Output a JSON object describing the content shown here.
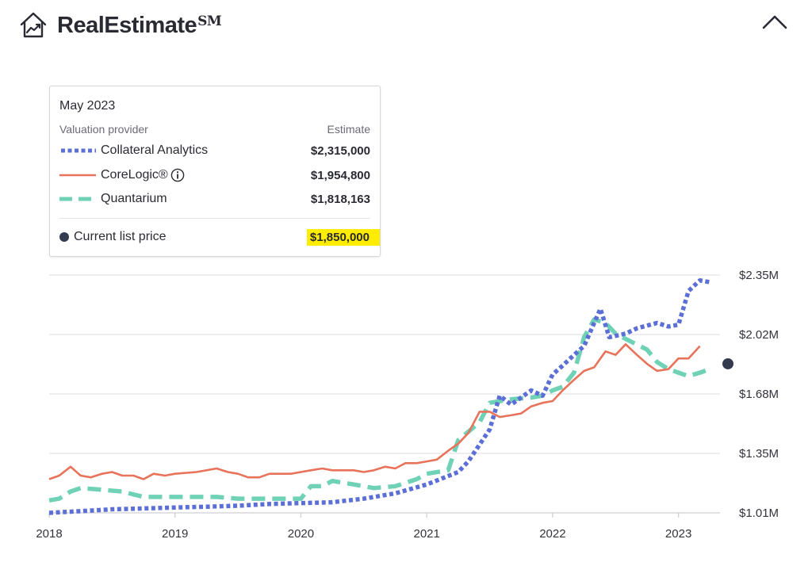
{
  "header": {
    "title": "RealEstimate",
    "title_mark": "SM",
    "logo_icon": "house-trend-icon",
    "collapse_icon": "chevron-up-icon"
  },
  "legend": {
    "date": "May 2023",
    "provider_header": "Valuation provider",
    "estimate_header": "Estimate",
    "providers": [
      {
        "name": "Collateral Analytics",
        "estimate": "$2,315,000",
        "color": "#5c6fd6",
        "style": "dotted"
      },
      {
        "name": "CoreLogic®",
        "estimate": "$1,954,800",
        "color": "#e8735a",
        "style": "solid"
      },
      {
        "name": "Quantarium",
        "estimate": "$1,818,163",
        "color": "#6fd1b5",
        "style": "dashed"
      }
    ],
    "list_price_label": "Current list price",
    "list_price_value": "$1,850,000",
    "highlight_color": "#ffed00",
    "list_price_color": "#343b4f"
  },
  "chart_data": {
    "type": "line",
    "x_labels": [
      "2018",
      "2019",
      "2020",
      "2021",
      "2022",
      "2023"
    ],
    "y_labels": [
      "$2.35M",
      "$2.02M",
      "$1.68M",
      "$1.35M",
      "$1.01M"
    ],
    "ylim": [
      1.01,
      2.35
    ],
    "x_range": [
      2018.0,
      2023.33
    ],
    "grid": true,
    "series": [
      {
        "name": "Collateral Analytics",
        "color": "#5c6fd6",
        "style": "dotted",
        "points": [
          [
            2018.0,
            1.01
          ],
          [
            2018.25,
            1.02
          ],
          [
            2018.5,
            1.03
          ],
          [
            2018.75,
            1.035
          ],
          [
            2019.0,
            1.04
          ],
          [
            2019.25,
            1.045
          ],
          [
            2019.5,
            1.05
          ],
          [
            2019.75,
            1.06
          ],
          [
            2020.0,
            1.065
          ],
          [
            2020.25,
            1.07
          ],
          [
            2020.5,
            1.09
          ],
          [
            2020.75,
            1.12
          ],
          [
            2021.0,
            1.17
          ],
          [
            2021.25,
            1.24
          ],
          [
            2021.33,
            1.3
          ],
          [
            2021.5,
            1.48
          ],
          [
            2021.58,
            1.67
          ],
          [
            2021.67,
            1.62
          ],
          [
            2021.83,
            1.7
          ],
          [
            2021.92,
            1.67
          ],
          [
            2022.0,
            1.79
          ],
          [
            2022.08,
            1.84
          ],
          [
            2022.17,
            1.9
          ],
          [
            2022.25,
            1.95
          ],
          [
            2022.33,
            2.08
          ],
          [
            2022.38,
            2.16
          ],
          [
            2022.45,
            2.0
          ],
          [
            2022.58,
            2.02
          ],
          [
            2022.67,
            2.05
          ],
          [
            2022.83,
            2.08
          ],
          [
            2022.92,
            2.06
          ],
          [
            2023.0,
            2.07
          ],
          [
            2023.08,
            2.26
          ],
          [
            2023.17,
            2.32
          ],
          [
            2023.25,
            2.31
          ]
        ]
      },
      {
        "name": "CoreLogic®",
        "color": "#e8735a",
        "style": "solid",
        "points": [
          [
            2018.0,
            1.2
          ],
          [
            2018.08,
            1.22
          ],
          [
            2018.17,
            1.27
          ],
          [
            2018.25,
            1.22
          ],
          [
            2018.33,
            1.21
          ],
          [
            2018.42,
            1.23
          ],
          [
            2018.5,
            1.24
          ],
          [
            2018.58,
            1.22
          ],
          [
            2018.67,
            1.22
          ],
          [
            2018.75,
            1.2
          ],
          [
            2018.83,
            1.23
          ],
          [
            2018.92,
            1.22
          ],
          [
            2019.0,
            1.23
          ],
          [
            2019.17,
            1.24
          ],
          [
            2019.33,
            1.26
          ],
          [
            2019.42,
            1.24
          ],
          [
            2019.5,
            1.23
          ],
          [
            2019.58,
            1.21
          ],
          [
            2019.67,
            1.21
          ],
          [
            2019.75,
            1.23
          ],
          [
            2019.83,
            1.23
          ],
          [
            2019.92,
            1.23
          ],
          [
            2020.0,
            1.24
          ],
          [
            2020.08,
            1.25
          ],
          [
            2020.17,
            1.26
          ],
          [
            2020.25,
            1.25
          ],
          [
            2020.33,
            1.25
          ],
          [
            2020.42,
            1.25
          ],
          [
            2020.5,
            1.24
          ],
          [
            2020.58,
            1.25
          ],
          [
            2020.67,
            1.27
          ],
          [
            2020.75,
            1.26
          ],
          [
            2020.83,
            1.29
          ],
          [
            2020.92,
            1.29
          ],
          [
            2021.0,
            1.3
          ],
          [
            2021.08,
            1.31
          ],
          [
            2021.17,
            1.36
          ],
          [
            2021.25,
            1.4
          ],
          [
            2021.33,
            1.46
          ],
          [
            2021.42,
            1.58
          ],
          [
            2021.5,
            1.58
          ],
          [
            2021.58,
            1.55
          ],
          [
            2021.67,
            1.56
          ],
          [
            2021.75,
            1.57
          ],
          [
            2021.83,
            1.61
          ],
          [
            2021.92,
            1.63
          ],
          [
            2022.0,
            1.64
          ],
          [
            2022.08,
            1.7
          ],
          [
            2022.17,
            1.76
          ],
          [
            2022.25,
            1.81
          ],
          [
            2022.33,
            1.83
          ],
          [
            2022.42,
            1.92
          ],
          [
            2022.5,
            1.9
          ],
          [
            2022.58,
            1.96
          ],
          [
            2022.67,
            1.9
          ],
          [
            2022.75,
            1.85
          ],
          [
            2022.83,
            1.81
          ],
          [
            2022.92,
            1.82
          ],
          [
            2023.0,
            1.88
          ],
          [
            2023.08,
            1.88
          ],
          [
            2023.17,
            1.95
          ]
        ]
      },
      {
        "name": "Quantarium",
        "color": "#6fd1b5",
        "style": "dashed",
        "points": [
          [
            2018.0,
            1.08
          ],
          [
            2018.08,
            1.09
          ],
          [
            2018.17,
            1.13
          ],
          [
            2018.25,
            1.15
          ],
          [
            2018.42,
            1.14
          ],
          [
            2018.58,
            1.13
          ],
          [
            2018.75,
            1.1
          ],
          [
            2019.0,
            1.1
          ],
          [
            2019.17,
            1.1
          ],
          [
            2019.33,
            1.1
          ],
          [
            2019.5,
            1.09
          ],
          [
            2019.67,
            1.09
          ],
          [
            2019.83,
            1.09
          ],
          [
            2019.92,
            1.09
          ],
          [
            2020.0,
            1.09
          ],
          [
            2020.08,
            1.16
          ],
          [
            2020.17,
            1.16
          ],
          [
            2020.25,
            1.19
          ],
          [
            2020.42,
            1.17
          ],
          [
            2020.58,
            1.15
          ],
          [
            2020.75,
            1.16
          ],
          [
            2020.92,
            1.2
          ],
          [
            2021.0,
            1.23
          ],
          [
            2021.17,
            1.25
          ],
          [
            2021.25,
            1.42
          ],
          [
            2021.42,
            1.52
          ],
          [
            2021.5,
            1.63
          ],
          [
            2021.67,
            1.65
          ],
          [
            2021.83,
            1.66
          ],
          [
            2021.92,
            1.67
          ],
          [
            2022.0,
            1.7
          ],
          [
            2022.08,
            1.72
          ],
          [
            2022.17,
            1.8
          ],
          [
            2022.25,
            2.0
          ],
          [
            2022.33,
            2.1
          ],
          [
            2022.42,
            2.08
          ],
          [
            2022.5,
            2.02
          ],
          [
            2022.58,
            1.99
          ],
          [
            2022.75,
            1.93
          ],
          [
            2022.83,
            1.86
          ],
          [
            2022.92,
            1.82
          ],
          [
            2023.0,
            1.8
          ],
          [
            2023.08,
            1.78
          ],
          [
            2023.17,
            1.8
          ],
          [
            2023.25,
            1.82
          ]
        ]
      }
    ],
    "list_price_point": {
      "x": 2023.33,
      "y": 1.85
    }
  }
}
